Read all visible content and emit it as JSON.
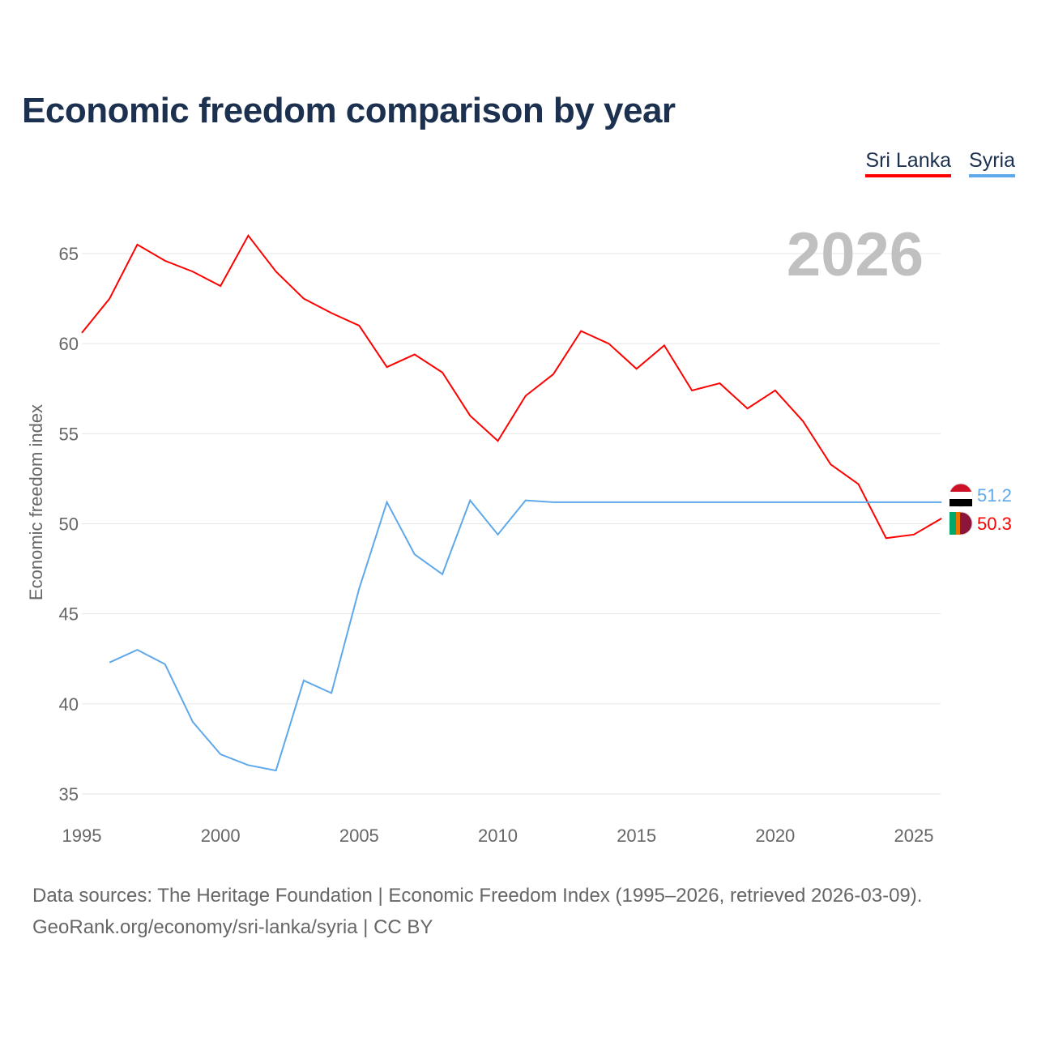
{
  "title": "Economic freedom comparison by year",
  "footer": {
    "line1": "Data sources: The Heritage Foundation | Economic Freedom Index (1995–2026, retrieved 2026-03-09).",
    "line2": "GeoRank.org/economy/sri-lanka/syria | CC BY"
  },
  "chart_data": {
    "type": "line",
    "title": "Economic freedom comparison by year",
    "ylabel": "Economic freedom index",
    "xlabel": "",
    "year_watermark": "2026",
    "xlim": [
      1995,
      2026
    ],
    "ylim": [
      34,
      67
    ],
    "xticks": [
      1995,
      2000,
      2005,
      2010,
      2015,
      2020,
      2025
    ],
    "yticks": [
      35,
      40,
      45,
      50,
      55,
      60,
      65
    ],
    "grid": true,
    "legend_position": "top-right",
    "series": [
      {
        "name": "Sri Lanka",
        "color": "#ff0000",
        "end_label": "50.3",
        "x": [
          1995,
          1996,
          1997,
          1998,
          1999,
          2000,
          2001,
          2002,
          2003,
          2004,
          2005,
          2006,
          2007,
          2008,
          2009,
          2010,
          2011,
          2012,
          2013,
          2014,
          2015,
          2016,
          2017,
          2018,
          2019,
          2020,
          2021,
          2022,
          2023,
          2024,
          2025,
          2026
        ],
        "values": [
          60.6,
          62.5,
          65.5,
          64.6,
          64.0,
          63.2,
          66.0,
          64.0,
          62.5,
          61.7,
          61.0,
          58.7,
          59.4,
          58.4,
          56.0,
          54.6,
          57.1,
          58.3,
          60.7,
          60.0,
          58.6,
          59.9,
          57.4,
          57.8,
          56.4,
          57.4,
          55.7,
          53.3,
          52.2,
          49.2,
          49.4,
          50.3
        ]
      },
      {
        "name": "Syria",
        "color": "#5fa8ea",
        "end_label": "51.2",
        "x": [
          1996,
          1997,
          1998,
          1999,
          2000,
          2001,
          2002,
          2003,
          2004,
          2005,
          2006,
          2007,
          2008,
          2009,
          2010,
          2011,
          2012,
          2026
        ],
        "values": [
          42.3,
          43.0,
          42.2,
          39.0,
          37.2,
          36.6,
          36.3,
          41.3,
          40.6,
          46.4,
          51.2,
          48.3,
          47.2,
          51.3,
          49.4,
          51.3,
          51.2,
          51.2
        ]
      }
    ]
  }
}
